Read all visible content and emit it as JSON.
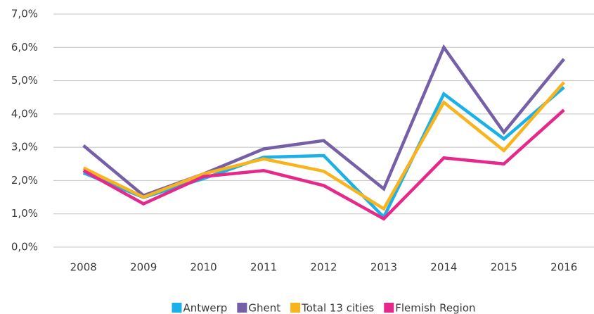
{
  "chart_data": {
    "type": "line",
    "categories": [
      "2008",
      "2009",
      "2010",
      "2011",
      "2012",
      "2013",
      "2014",
      "2015",
      "2016"
    ],
    "series": [
      {
        "name": "Antwerp",
        "color": "#1ab0e8",
        "values": [
          2.23,
          1.49,
          2.06,
          2.7,
          2.75,
          0.9,
          4.6,
          3.25,
          4.8
        ]
      },
      {
        "name": "Ghent",
        "color": "#7560a8",
        "values": [
          3.05,
          1.55,
          2.2,
          2.95,
          3.2,
          1.75,
          6.0,
          3.45,
          5.65
        ]
      },
      {
        "name": "Total 13 cities",
        "color": "#f9b31c",
        "values": [
          2.38,
          1.5,
          2.2,
          2.65,
          2.28,
          1.15,
          4.35,
          2.9,
          4.95
        ]
      },
      {
        "name": "Flemish Region",
        "color": "#e6288a",
        "values": [
          2.3,
          1.3,
          2.12,
          2.3,
          1.85,
          0.85,
          2.68,
          2.5,
          4.12
        ]
      }
    ],
    "ylim": [
      0,
      7
    ],
    "yticks": [
      {
        "value": 0,
        "label": "0,0%"
      },
      {
        "value": 1,
        "label": "1,0%"
      },
      {
        "value": 2,
        "label": "2,0%"
      },
      {
        "value": 3,
        "label": "3,0%"
      },
      {
        "value": 4,
        "label": "4,0%"
      },
      {
        "value": 5,
        "label": "5,0%"
      },
      {
        "value": 6,
        "label": "6,0%"
      },
      {
        "value": 7,
        "label": "7,0%"
      }
    ],
    "grid": true,
    "legend": "bottom"
  }
}
